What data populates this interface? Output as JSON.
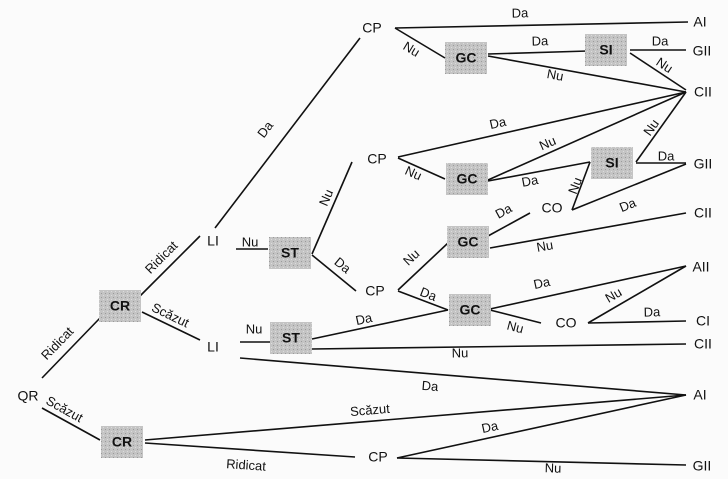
{
  "colors": {
    "line": "#111111",
    "box_fill": "#c4c4c4",
    "background": "#fbfbfb"
  },
  "nodes": [
    {
      "id": "QR",
      "label": "QR",
      "boxed": false
    },
    {
      "id": "CR1",
      "label": "CR",
      "boxed": true
    },
    {
      "id": "CR2",
      "label": "CR",
      "boxed": true
    },
    {
      "id": "LI1",
      "label": "LI",
      "boxed": false
    },
    {
      "id": "LI2",
      "label": "LI",
      "boxed": false
    },
    {
      "id": "ST1",
      "label": "ST",
      "boxed": true
    },
    {
      "id": "ST2",
      "label": "ST",
      "boxed": true
    },
    {
      "id": "CP1",
      "label": "CP",
      "boxed": false
    },
    {
      "id": "CP2",
      "label": "CP",
      "boxed": false
    },
    {
      "id": "CP3",
      "label": "CP",
      "boxed": false
    },
    {
      "id": "CP4",
      "label": "CP",
      "boxed": false
    },
    {
      "id": "GC1",
      "label": "GC",
      "boxed": true
    },
    {
      "id": "GC2",
      "label": "GC",
      "boxed": true
    },
    {
      "id": "GC3",
      "label": "GC",
      "boxed": true
    },
    {
      "id": "GC4",
      "label": "GC",
      "boxed": true
    },
    {
      "id": "SI1",
      "label": "SI",
      "boxed": true
    },
    {
      "id": "SI2",
      "label": "SI",
      "boxed": true
    },
    {
      "id": "CO1",
      "label": "CO",
      "boxed": false
    },
    {
      "id": "CO2",
      "label": "CO",
      "boxed": false
    },
    {
      "id": "J1",
      "label": "",
      "boxed": false
    },
    {
      "id": "AI1",
      "label": "AI",
      "boxed": false
    },
    {
      "id": "GII1",
      "label": "GII",
      "boxed": false
    },
    {
      "id": "CII1",
      "label": "CII",
      "boxed": false
    },
    {
      "id": "GII2",
      "label": "GII",
      "boxed": false
    },
    {
      "id": "CII2",
      "label": "CII",
      "boxed": false
    },
    {
      "id": "AII",
      "label": "AII",
      "boxed": false
    },
    {
      "id": "CI",
      "label": "CI",
      "boxed": false
    },
    {
      "id": "CII3",
      "label": "CII",
      "boxed": false
    },
    {
      "id": "AI2",
      "label": "AI",
      "boxed": false
    },
    {
      "id": "GII3",
      "label": "GII",
      "boxed": false
    }
  ],
  "edges": [
    {
      "from": "QR",
      "to": "CR1",
      "label": "Ridicat"
    },
    {
      "from": "QR",
      "to": "CR2",
      "label": "Scăzut"
    },
    {
      "from": "CR1",
      "to": "LI1",
      "label": "Ridicat"
    },
    {
      "from": "CR1",
      "to": "LI2",
      "label": "Scăzut"
    },
    {
      "from": "LI1",
      "to": "CP1",
      "label": "Da"
    },
    {
      "from": "LI1",
      "to": "ST1",
      "label": "Nu"
    },
    {
      "from": "ST1",
      "to": "CP2",
      "label": "Nu"
    },
    {
      "from": "ST1",
      "to": "CP3",
      "label": "Da"
    },
    {
      "from": "CP1",
      "to": "AI1",
      "label": "Da"
    },
    {
      "from": "CP1",
      "to": "GC1",
      "label": "Nu"
    },
    {
      "from": "GC1",
      "to": "SI1",
      "label": "Da"
    },
    {
      "from": "GC1",
      "to": "CII1",
      "label": "Nu"
    },
    {
      "from": "SI1",
      "to": "GII1",
      "label": "Da"
    },
    {
      "from": "SI1",
      "to": "CII1",
      "label": "Nu"
    },
    {
      "from": "CP2",
      "to": "CII1",
      "label": "Da"
    },
    {
      "from": "CP2",
      "to": "GC2",
      "label": "Nu"
    },
    {
      "from": "GC2",
      "to": "CII1",
      "label": "Nu"
    },
    {
      "from": "GC2",
      "to": "SI2",
      "label": "Da"
    },
    {
      "from": "SI2",
      "to": "CII1",
      "label": "Nu"
    },
    {
      "from": "SI2",
      "to": "GII2",
      "label": "Da"
    },
    {
      "from": "SI2",
      "to": "J1",
      "label": "Nu"
    },
    {
      "from": "J1",
      "to": "GII2",
      "label": "Da"
    },
    {
      "from": "CP3",
      "to": "GC3",
      "label": "Nu"
    },
    {
      "from": "CP3",
      "to": "GC4",
      "label": "Da"
    },
    {
      "from": "GC3",
      "to": "CO1",
      "label": "Da"
    },
    {
      "from": "GC3",
      "to": "CII2",
      "label": "Nu"
    },
    {
      "from": "GC4",
      "to": "AII",
      "label": "Da"
    },
    {
      "from": "GC4",
      "to": "CO2",
      "label": "Nu"
    },
    {
      "from": "CO2",
      "to": "AII",
      "label": "Nu"
    },
    {
      "from": "CO2",
      "to": "CI",
      "label": "Da"
    },
    {
      "from": "LI2",
      "to": "ST2",
      "label": "Nu"
    },
    {
      "from": "ST2",
      "to": "GC4",
      "label": "Da"
    },
    {
      "from": "ST2",
      "to": "CII3",
      "label": "Nu"
    },
    {
      "from": "LI2",
      "to": "AI2",
      "label": "Da"
    },
    {
      "from": "CR2",
      "to": "AI2",
      "label": "Scăzut"
    },
    {
      "from": "CR2",
      "to": "CP4",
      "label": "Ridicat"
    },
    {
      "from": "CP4",
      "to": "AI2",
      "label": "Da"
    },
    {
      "from": "CP4",
      "to": "GII3",
      "label": "Nu"
    }
  ]
}
